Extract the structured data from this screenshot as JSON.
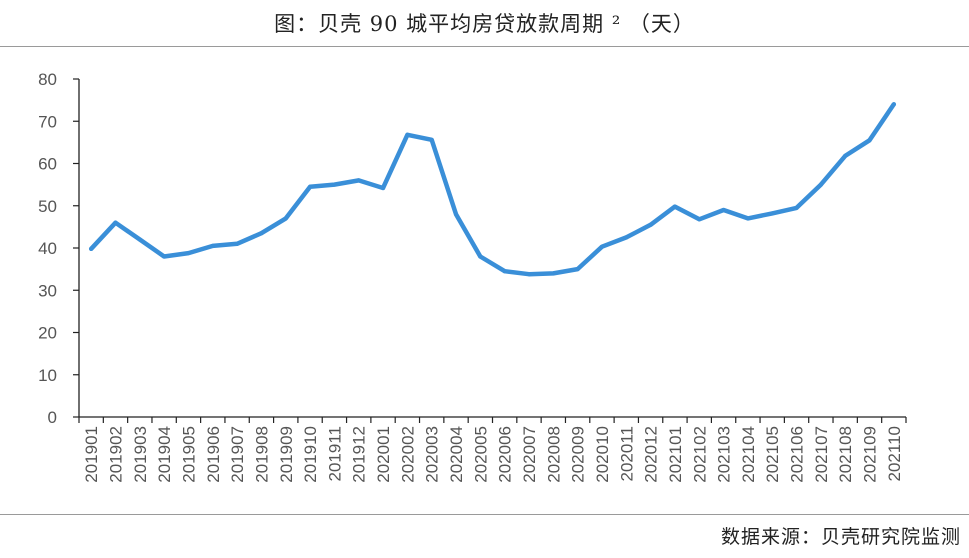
{
  "title": "图：贝壳 90 城平均房贷放款周期 ² （天）",
  "source": "数据来源：贝壳研究院监测",
  "colors": {
    "line": "#3a8fd8",
    "axis": "#222222",
    "rule": "#9a9a9a"
  },
  "chart_data": {
    "type": "line",
    "title": "图：贝壳 90 城平均房贷放款周期 ² （天）",
    "xlabel": "",
    "ylabel": "",
    "ylim": [
      0,
      80
    ],
    "yticks": [
      0,
      10,
      20,
      30,
      40,
      50,
      60,
      70,
      80
    ],
    "grid": false,
    "categories": [
      "201901",
      "201902",
      "201903",
      "201904",
      "201905",
      "201906",
      "201907",
      "201908",
      "201909",
      "201910",
      "201911",
      "201912",
      "202001",
      "202002",
      "202003",
      "202004",
      "202005",
      "202006",
      "202007",
      "202008",
      "202009",
      "202010",
      "202011",
      "202012",
      "202101",
      "202102",
      "202103",
      "202104",
      "202105",
      "202106",
      "202107",
      "202108",
      "202109",
      "202110"
    ],
    "series": [
      {
        "values": [
          39.8,
          46.0,
          42.0,
          38.0,
          38.8,
          40.5,
          41.0,
          43.5,
          47.0,
          54.5,
          55.0,
          56.0,
          54.2,
          66.8,
          65.6,
          48.0,
          38.0,
          34.5,
          33.8,
          34.0,
          35.0,
          40.3,
          42.5,
          45.5,
          49.8,
          46.8,
          49.0,
          47.0,
          48.2,
          49.5,
          55.0,
          61.8,
          65.5,
          74.0
        ]
      }
    ]
  }
}
